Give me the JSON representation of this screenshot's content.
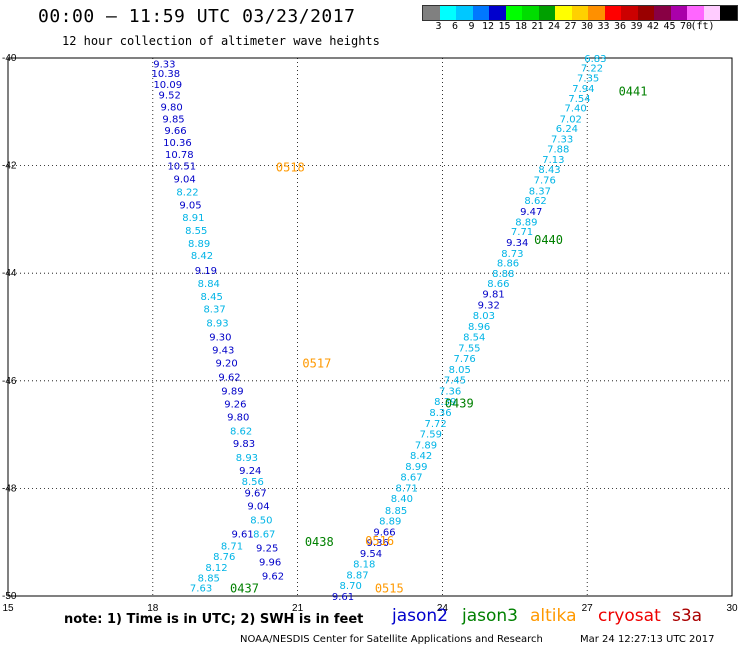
{
  "header": {
    "title": "00:00 – 11:59 UTC 03/23/2017",
    "subtitle": "12 hour collection of altimeter wave heights"
  },
  "scale": {
    "colors": [
      "#808080",
      "#00ffff",
      "#00c8ff",
      "#0078ff",
      "#0000cd",
      "#00ff00",
      "#00dd00",
      "#00a000",
      "#ffff00",
      "#ffd000",
      "#ff9000",
      "#ff0000",
      "#cc0000",
      "#990000",
      "#880044",
      "#aa00aa",
      "#ff66ff",
      "#ffccff",
      "#000000"
    ],
    "labels": [
      "3",
      "6",
      "9",
      "12",
      "15",
      "18",
      "21",
      "24",
      "27",
      "30",
      "33",
      "36",
      "39",
      "42",
      "45",
      "70",
      "(ft)"
    ]
  },
  "chart_data": {
    "type": "scatter",
    "title": "00:00 – 11:59 UTC 03/23/2017",
    "subtitle": "12 hour collection of altimeter wave heights",
    "xlim": [
      15,
      30
    ],
    "ylim": [
      -50,
      -40
    ],
    "xticks": [
      "15",
      "18",
      "21",
      "24",
      "27",
      "30"
    ],
    "yticks": [
      "-40",
      "-42",
      "-44",
      "-46",
      "-48",
      "-50"
    ],
    "grid": true,
    "colors": {
      "light": "#00b4e6",
      "dark": "#0000c8",
      "time_jason3": "#008000",
      "time_altika": "#ff9900"
    },
    "tracks": [
      {
        "name": "descending",
        "points": [
          {
            "x": 18.24,
            "y": -40.1,
            "v": "9.33",
            "c": "dark"
          },
          {
            "x": 18.27,
            "y": -40.28,
            "v": "10.38",
            "c": "dark"
          },
          {
            "x": 18.31,
            "y": -40.48,
            "v": "10.09",
            "c": "dark"
          },
          {
            "x": 18.35,
            "y": -40.68,
            "v": "9.52",
            "c": "dark"
          },
          {
            "x": 18.39,
            "y": -40.9,
            "v": "9.80",
            "c": "dark"
          },
          {
            "x": 18.43,
            "y": -41.12,
            "v": "9.85",
            "c": "dark"
          },
          {
            "x": 18.47,
            "y": -41.34,
            "v": "9.66",
            "c": "dark"
          },
          {
            "x": 18.51,
            "y": -41.56,
            "v": "10.36",
            "c": "dark"
          },
          {
            "x": 18.55,
            "y": -41.78,
            "v": "10.78",
            "c": "dark"
          },
          {
            "x": 18.6,
            "y": -42.0,
            "v": "10.51",
            "c": "dark"
          },
          {
            "x": 18.66,
            "y": -42.24,
            "v": "9.04",
            "c": "dark"
          },
          {
            "x": 18.72,
            "y": -42.48,
            "v": "8.22",
            "c": "light"
          },
          {
            "x": 18.78,
            "y": -42.72,
            "v": "9.05",
            "c": "dark"
          },
          {
            "x": 18.84,
            "y": -42.96,
            "v": "8.91",
            "c": "light"
          },
          {
            "x": 18.9,
            "y": -43.2,
            "v": "8.55",
            "c": "light"
          },
          {
            "x": 18.96,
            "y": -43.44,
            "v": "8.89",
            "c": "light"
          },
          {
            "x": 19.02,
            "y": -43.66,
            "v": "8.42",
            "c": "light"
          },
          {
            "x": 19.1,
            "y": -43.94,
            "v": "9.19",
            "c": "dark"
          },
          {
            "x": 19.16,
            "y": -44.18,
            "v": "8.84",
            "c": "light"
          },
          {
            "x": 19.22,
            "y": -44.42,
            "v": "8.45",
            "c": "light"
          },
          {
            "x": 19.28,
            "y": -44.66,
            "v": "8.37",
            "c": "light"
          },
          {
            "x": 19.34,
            "y": -44.92,
            "v": "8.93",
            "c": "light"
          },
          {
            "x": 19.4,
            "y": -45.18,
            "v": "9.30",
            "c": "dark"
          },
          {
            "x": 19.46,
            "y": -45.42,
            "v": "9.43",
            "c": "dark"
          },
          {
            "x": 19.53,
            "y": -45.66,
            "v": "9.20",
            "c": "dark"
          },
          {
            "x": 19.59,
            "y": -45.92,
            "v": "9.62",
            "c": "dark"
          },
          {
            "x": 19.65,
            "y": -46.18,
            "v": "9.89",
            "c": "dark"
          },
          {
            "x": 19.71,
            "y": -46.42,
            "v": "9.26",
            "c": "dark"
          },
          {
            "x": 19.77,
            "y": -46.66,
            "v": "9.80",
            "c": "dark"
          },
          {
            "x": 19.83,
            "y": -46.92,
            "v": "8.62",
            "c": "light"
          },
          {
            "x": 19.89,
            "y": -47.16,
            "v": "9.83",
            "c": "dark"
          },
          {
            "x": 19.95,
            "y": -47.42,
            "v": "8.93",
            "c": "light"
          },
          {
            "x": 20.02,
            "y": -47.66,
            "v": "9.24",
            "c": "dark"
          },
          {
            "x": 20.07,
            "y": -47.86,
            "v": "8.56",
            "c": "light"
          },
          {
            "x": 20.13,
            "y": -48.08,
            "v": "9.67",
            "c": "dark"
          },
          {
            "x": 20.19,
            "y": -48.32,
            "v": "9.04",
            "c": "dark"
          },
          {
            "x": 20.25,
            "y": -48.58,
            "v": "8.50",
            "c": "light"
          },
          {
            "x": 20.31,
            "y": -48.84,
            "v": "8.67",
            "c": "light"
          },
          {
            "x": 20.37,
            "y": -49.1,
            "v": "9.25",
            "c": "dark"
          },
          {
            "x": 20.43,
            "y": -49.36,
            "v": "9.96",
            "c": "dark"
          },
          {
            "x": 20.49,
            "y": -49.62,
            "v": "9.62",
            "c": "dark"
          }
        ]
      },
      {
        "name": "ascending",
        "points": [
          {
            "x": 27.17,
            "y": -40.0,
            "v": "6.83",
            "c": "light"
          },
          {
            "x": 27.1,
            "y": -40.18,
            "v": "7.22",
            "c": "light"
          },
          {
            "x": 27.02,
            "y": -40.36,
            "v": "7.35",
            "c": "light"
          },
          {
            "x": 26.92,
            "y": -40.56,
            "v": "7.94",
            "c": "light"
          },
          {
            "x": 26.84,
            "y": -40.74,
            "v": "7.54",
            "c": "light"
          },
          {
            "x": 26.76,
            "y": -40.92,
            "v": "7.40",
            "c": "light"
          },
          {
            "x": 26.66,
            "y": -41.12,
            "v": "7.02",
            "c": "light"
          },
          {
            "x": 26.58,
            "y": -41.3,
            "v": "6.24",
            "c": "light"
          },
          {
            "x": 26.48,
            "y": -41.5,
            "v": "7.33",
            "c": "light"
          },
          {
            "x": 26.4,
            "y": -41.68,
            "v": "7.88",
            "c": "light"
          },
          {
            "x": 26.3,
            "y": -41.88,
            "v": "7.13",
            "c": "light"
          },
          {
            "x": 26.22,
            "y": -42.06,
            "v": "8.43",
            "c": "light"
          },
          {
            "x": 26.12,
            "y": -42.26,
            "v": "7.76",
            "c": "light"
          },
          {
            "x": 26.02,
            "y": -42.46,
            "v": "8.37",
            "c": "light"
          },
          {
            "x": 25.93,
            "y": -42.64,
            "v": "8.62",
            "c": "light"
          },
          {
            "x": 25.84,
            "y": -42.84,
            "v": "9.47",
            "c": "dark"
          },
          {
            "x": 25.74,
            "y": -43.04,
            "v": "8.89",
            "c": "light"
          },
          {
            "x": 25.65,
            "y": -43.22,
            "v": "7.71",
            "c": "light"
          },
          {
            "x": 25.55,
            "y": -43.42,
            "v": "9.34",
            "c": "dark"
          },
          {
            "x": 25.45,
            "y": -43.62,
            "v": "8.73",
            "c": "light"
          },
          {
            "x": 25.36,
            "y": -43.8,
            "v": "8.86",
            "c": "light"
          },
          {
            "x": 25.26,
            "y": -44.0,
            "v": "8.88",
            "c": "light"
          },
          {
            "x": 25.16,
            "y": -44.18,
            "v": "8.66",
            "c": "light"
          },
          {
            "x": 25.06,
            "y": -44.38,
            "v": "9.81",
            "c": "dark"
          },
          {
            "x": 24.96,
            "y": -44.58,
            "v": "9.32",
            "c": "dark"
          },
          {
            "x": 24.86,
            "y": -44.78,
            "v": "8.03",
            "c": "light"
          },
          {
            "x": 24.76,
            "y": -44.98,
            "v": "8.96",
            "c": "light"
          },
          {
            "x": 24.66,
            "y": -45.18,
            "v": "8.54",
            "c": "light"
          },
          {
            "x": 24.56,
            "y": -45.38,
            "v": "7.55",
            "c": "light"
          },
          {
            "x": 24.46,
            "y": -45.58,
            "v": "7.76",
            "c": "light"
          },
          {
            "x": 24.36,
            "y": -45.78,
            "v": "8.05",
            "c": "light"
          },
          {
            "x": 24.26,
            "y": -45.98,
            "v": "7.45",
            "c": "light"
          },
          {
            "x": 24.16,
            "y": -46.18,
            "v": "7.36",
            "c": "light"
          },
          {
            "x": 24.06,
            "y": -46.38,
            "v": "8.39",
            "c": "light"
          },
          {
            "x": 23.96,
            "y": -46.58,
            "v": "8.36",
            "c": "light"
          },
          {
            "x": 23.86,
            "y": -46.78,
            "v": "7.72",
            "c": "light"
          },
          {
            "x": 23.76,
            "y": -46.98,
            "v": "7.59",
            "c": "light"
          },
          {
            "x": 23.66,
            "y": -47.18,
            "v": "7.89",
            "c": "light"
          },
          {
            "x": 23.56,
            "y": -47.38,
            "v": "8.42",
            "c": "light"
          },
          {
            "x": 23.46,
            "y": -47.58,
            "v": "8.99",
            "c": "light"
          },
          {
            "x": 23.36,
            "y": -47.78,
            "v": "8.67",
            "c": "light"
          },
          {
            "x": 23.26,
            "y": -47.98,
            "v": "8.71",
            "c": "light"
          },
          {
            "x": 23.16,
            "y": -48.18,
            "v": "8.40",
            "c": "light"
          },
          {
            "x": 23.04,
            "y": -48.4,
            "v": "8.85",
            "c": "light"
          },
          {
            "x": 22.92,
            "y": -48.6,
            "v": "8.89",
            "c": "light"
          },
          {
            "x": 22.8,
            "y": -48.8,
            "v": "9.66",
            "c": "dark"
          },
          {
            "x": 22.66,
            "y": -49.0,
            "v": "9.36",
            "c": "dark"
          },
          {
            "x": 22.52,
            "y": -49.2,
            "v": "9.54",
            "c": "dark"
          },
          {
            "x": 22.38,
            "y": -49.4,
            "v": "8.18",
            "c": "light"
          },
          {
            "x": 22.24,
            "y": -49.6,
            "v": "8.87",
            "c": "light"
          },
          {
            "x": 22.1,
            "y": -49.8,
            "v": "8.70",
            "c": "light"
          },
          {
            "x": 21.94,
            "y": -50.0,
            "v": "9.61",
            "c": "dark"
          }
        ]
      },
      {
        "name": "lower-left",
        "points": [
          {
            "x": 19.86,
            "y": -48.84,
            "v": "9.61",
            "c": "dark"
          },
          {
            "x": 19.64,
            "y": -49.06,
            "v": "8.71",
            "c": "light"
          },
          {
            "x": 19.48,
            "y": -49.26,
            "v": "8.76",
            "c": "light"
          },
          {
            "x": 19.32,
            "y": -49.46,
            "v": "8.12",
            "c": "light"
          },
          {
            "x": 19.16,
            "y": -49.66,
            "v": "8.85",
            "c": "light"
          },
          {
            "x": 19.0,
            "y": -49.84,
            "v": "7.63",
            "c": "light"
          }
        ]
      }
    ],
    "time_labels": [
      {
        "text": "0518",
        "x": 20.55,
        "y": -42.02,
        "c": "time_altika"
      },
      {
        "text": "0517",
        "x": 21.1,
        "y": -45.66,
        "c": "time_altika"
      },
      {
        "text": "0516",
        "x": 22.4,
        "y": -48.96,
        "c": "time_altika"
      },
      {
        "text": "0515",
        "x": 22.6,
        "y": -49.84,
        "c": "time_altika"
      },
      {
        "text": "0441",
        "x": 27.65,
        "y": -40.6,
        "c": "time_jason3"
      },
      {
        "text": "0440",
        "x": 25.9,
        "y": -43.36,
        "c": "time_jason3"
      },
      {
        "text": "0439",
        "x": 24.05,
        "y": -46.4,
        "c": "time_jason3"
      },
      {
        "text": "0438",
        "x": 21.15,
        "y": -48.98,
        "c": "time_jason3"
      },
      {
        "text": "0437",
        "x": 19.6,
        "y": -49.84,
        "c": "time_jason3"
      }
    ]
  },
  "footer": {
    "note": "note: 1) Time is in UTC; 2) SWH is in feet",
    "satellites": [
      {
        "name": "jason2",
        "color": "#0000cc"
      },
      {
        "name": "jason3",
        "color": "#008000"
      },
      {
        "name": "altika",
        "color": "#ff9900"
      },
      {
        "name": "cryosat",
        "color": "#ee0000"
      },
      {
        "name": "s3a",
        "color": "#aa0000"
      }
    ],
    "credits": "NOAA/NESDIS Center for Satellite Applications and Research",
    "timestamp": "Mar 24 12:27:13 UTC 2017"
  }
}
